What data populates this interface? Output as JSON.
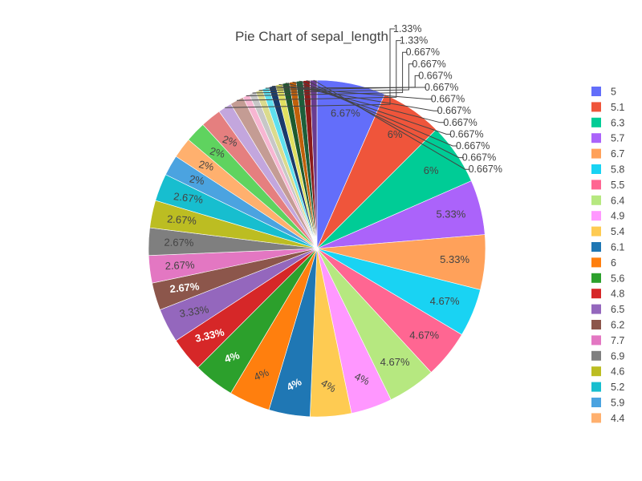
{
  "chart_data": {
    "type": "pie",
    "title": "Pie Chart of sepal_length",
    "unit": "%",
    "slices": [
      {
        "label": "5",
        "value": 6.67,
        "text": "6.67%",
        "color": "#636efa"
      },
      {
        "label": "5.1",
        "value": 6,
        "text": "6%",
        "color": "#EF553B"
      },
      {
        "label": "6.3",
        "value": 6,
        "text": "6%",
        "color": "#00cc96"
      },
      {
        "label": "5.7",
        "value": 5.33,
        "text": "5.33%",
        "color": "#ab63fa"
      },
      {
        "label": "6.7",
        "value": 5.33,
        "text": "5.33%",
        "color": "#FFA15A"
      },
      {
        "label": "5.8",
        "value": 4.67,
        "text": "4.67%",
        "color": "#19d3f3"
      },
      {
        "label": "5.5",
        "value": 4.67,
        "text": "4.67%",
        "color": "#FF6692"
      },
      {
        "label": "6.4",
        "value": 4.67,
        "text": "4.67%",
        "color": "#B6E880"
      },
      {
        "label": "4.9",
        "value": 4,
        "text": "4%",
        "color": "#FF97FF"
      },
      {
        "label": "5.4",
        "value": 4,
        "text": "4%",
        "color": "#FECB52"
      },
      {
        "label": "6.1",
        "value": 4,
        "text": "4%",
        "color": "#1f77b4"
      },
      {
        "label": "6",
        "value": 4,
        "text": "4%",
        "color": "#ff7f0e"
      },
      {
        "label": "5.6",
        "value": 4,
        "text": "4%",
        "color": "#2ca02c"
      },
      {
        "label": "4.8",
        "value": 3.33,
        "text": "3.33%",
        "color": "#d62728"
      },
      {
        "label": "6.5",
        "value": 3.33,
        "text": "3.33%",
        "color": "#9467bd"
      },
      {
        "label": "6.2",
        "value": 2.67,
        "text": "2.67%",
        "color": "#8c564b"
      },
      {
        "label": "7.7",
        "value": 2.67,
        "text": "2.67%",
        "color": "#e377c2"
      },
      {
        "label": "6.9",
        "value": 2.67,
        "text": "2.67%",
        "color": "#7f7f7f"
      },
      {
        "label": "4.6",
        "value": 2.67,
        "text": "2.67%",
        "color": "#bcbd22"
      },
      {
        "label": "5.2",
        "value": 2.67,
        "text": "2.67%",
        "color": "#17becf"
      },
      {
        "label": "5.9",
        "value": 2,
        "text": "2%",
        "color": "#4ba3e0"
      },
      {
        "label": "4.4",
        "value": 2,
        "text": "2%",
        "color": "#ffb06e"
      },
      {
        "label": "",
        "value": 2,
        "text": "2%",
        "color": "#5fd35f"
      },
      {
        "label": "",
        "value": 2,
        "text": "2%",
        "color": "#e57f7f"
      },
      {
        "label": "",
        "value": 1.33,
        "text": "1.33%",
        "color": "#c3a6dd"
      },
      {
        "label": "",
        "value": 1.33,
        "text": "1.33%",
        "color": "#c49c94"
      },
      {
        "label": "",
        "value": 0.667,
        "text": "0.667%",
        "color": "#f7b6d2"
      },
      {
        "label": "",
        "value": 0.667,
        "text": "0.667%",
        "color": "#c7c7c7"
      },
      {
        "label": "",
        "value": 0.667,
        "text": "0.667%",
        "color": "#dbdb8d"
      },
      {
        "label": "",
        "value": 0.667,
        "text": "0.667%",
        "color": "#5ee0ef"
      },
      {
        "label": "",
        "value": 0.667,
        "text": "0.667%",
        "color": "#1a3a6b"
      },
      {
        "label": "",
        "value": 0.667,
        "text": "0.667%",
        "color": "#e0e060"
      },
      {
        "label": "",
        "value": 0.667,
        "text": "0.667%",
        "color": "#1e5a2e"
      },
      {
        "label": "",
        "value": 0.667,
        "text": "0.667%",
        "color": "#c0600a"
      },
      {
        "label": "",
        "value": 0.667,
        "text": "0.667%",
        "color": "#1d5e3a"
      },
      {
        "label": "",
        "value": 0.667,
        "text": "0.667%",
        "color": "#8b1a1a"
      },
      {
        "label": "",
        "value": 0.667,
        "text": "0.667%",
        "color": "#6a3b8e"
      }
    ],
    "legend_position": "right"
  }
}
